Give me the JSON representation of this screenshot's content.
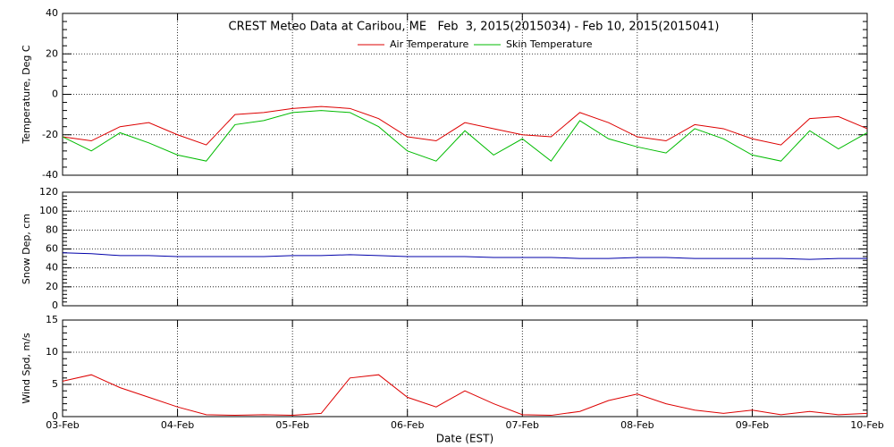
{
  "chart_data": [
    {
      "type": "line",
      "title": "CREST Meteo Data at Caribou, ME   Feb  3, 2015(2015034) - Feb 10, 2015(2015041)",
      "ylabel": "Temperature, Deg C",
      "x": [
        3,
        3.25,
        3.5,
        3.75,
        4,
        4.25,
        4.5,
        4.75,
        5,
        5.25,
        5.5,
        5.75,
        6,
        6.25,
        6.5,
        6.75,
        7,
        7.25,
        7.5,
        7.75,
        8,
        8.25,
        8.5,
        8.75,
        9,
        9.25,
        9.5,
        9.75,
        10
      ],
      "series": [
        {
          "name": "Air Temperature",
          "color": "#dd0000",
          "values": [
            -21,
            -23,
            -16,
            -14,
            -20,
            -25,
            -10,
            -9,
            -7,
            -6,
            -7,
            -12,
            -21,
            -23,
            -14,
            -17,
            -20,
            -21,
            -9,
            -14,
            -21,
            -23,
            -15,
            -17,
            -22,
            -25,
            -12,
            -11,
            -17
          ]
        },
        {
          "name": "Skin Temperature",
          "color": "#00bb00",
          "values": [
            -21,
            -28,
            -19,
            -24,
            -30,
            -33,
            -15,
            -13,
            -9,
            -8,
            -9,
            -16,
            -28,
            -33,
            -18,
            -30,
            -22,
            -33,
            -13,
            -22,
            -26,
            -29,
            -17,
            -22,
            -30,
            -33,
            -18,
            -27,
            -19
          ]
        }
      ],
      "xlim": [
        3,
        10
      ],
      "xticks": [
        3,
        4,
        5,
        6,
        7,
        8,
        9,
        10
      ],
      "ylim": [
        -40,
        40
      ],
      "yticks": [
        -40,
        -20,
        0,
        20,
        40
      ],
      "grid": true
    },
    {
      "type": "line",
      "ylabel": "Snow Dep, cm",
      "x": [
        3,
        3.25,
        3.5,
        3.75,
        4,
        4.25,
        4.5,
        4.75,
        5,
        5.25,
        5.5,
        5.75,
        6,
        6.25,
        6.5,
        6.75,
        7,
        7.25,
        7.5,
        7.75,
        8,
        8.25,
        8.5,
        8.75,
        9,
        9.25,
        9.5,
        9.75,
        10
      ],
      "series": [
        {
          "color": "#0000aa",
          "values": [
            56,
            55,
            53,
            53,
            52,
            52,
            52,
            52,
            53,
            53,
            54,
            53,
            52,
            52,
            52,
            51,
            51,
            51,
            50,
            50,
            51,
            51,
            50,
            50,
            50,
            50,
            49,
            50,
            50
          ]
        }
      ],
      "xlim": [
        3,
        10
      ],
      "xticks": [
        3,
        4,
        5,
        6,
        7,
        8,
        9,
        10
      ],
      "ylim": [
        0,
        120
      ],
      "yticks": [
        0,
        20,
        40,
        60,
        80,
        100,
        120
      ],
      "grid": true
    },
    {
      "type": "line",
      "ylabel": "Wind Spd, m/s",
      "xlabel": "Date (EST)",
      "x": [
        3,
        3.25,
        3.5,
        3.75,
        4,
        4.25,
        4.5,
        4.75,
        5,
        5.25,
        5.5,
        5.75,
        6,
        6.25,
        6.5,
        6.75,
        7,
        7.25,
        7.5,
        7.75,
        8,
        8.25,
        8.5,
        8.75,
        9,
        9.25,
        9.5,
        9.75,
        10
      ],
      "series": [
        {
          "color": "#dd0000",
          "values": [
            5.5,
            6.5,
            4.5,
            3,
            1.5,
            0.3,
            0.2,
            0.3,
            0.2,
            0.5,
            6,
            6.5,
            3,
            1.5,
            4,
            2,
            0.3,
            0.2,
            0.8,
            2.5,
            3.5,
            2,
            1,
            0.5,
            1,
            0.3,
            0.8,
            0.3,
            0.5
          ]
        }
      ],
      "xlim": [
        3,
        10
      ],
      "xticks": [
        {
          "value": 3,
          "label": "03-Feb"
        },
        {
          "value": 4,
          "label": "04-Feb"
        },
        {
          "value": 5,
          "label": "05-Feb"
        },
        {
          "value": 6,
          "label": "06-Feb"
        },
        {
          "value": 7,
          "label": "07-Feb"
        },
        {
          "value": 8,
          "label": "08-Feb"
        },
        {
          "value": 9,
          "label": "09-Feb"
        },
        {
          "value": 10,
          "label": "10-Feb"
        }
      ],
      "ylim": [
        0,
        15
      ],
      "yticks": [
        0,
        5,
        10,
        15
      ],
      "grid": true
    }
  ]
}
